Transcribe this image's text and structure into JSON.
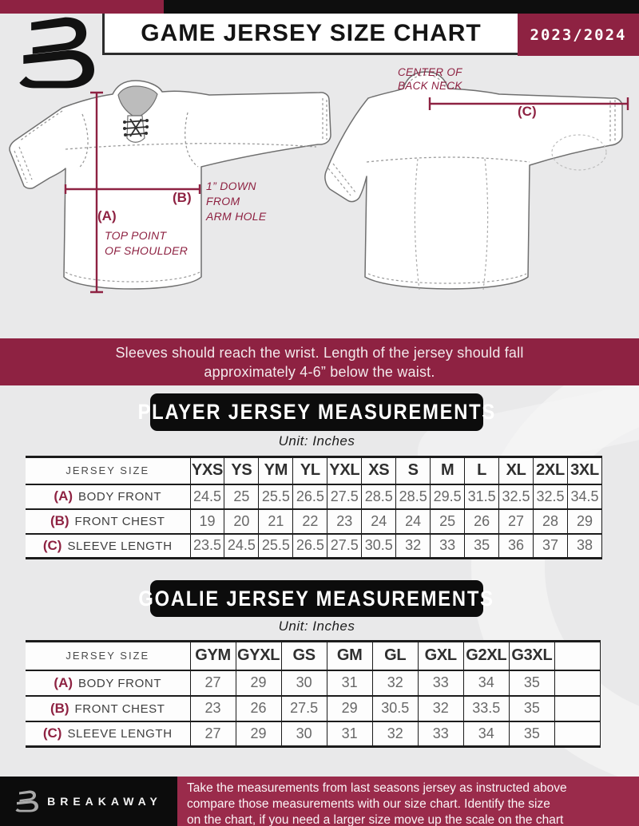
{
  "colors": {
    "brand_maroon": "#8e2242",
    "footer_maroon": "#9a2b4b",
    "black": "#0c0c0c",
    "page_bg": "#e9e9ea"
  },
  "header": {
    "title": "GAME JERSEY SIZE CHART",
    "season": "2023/2024",
    "logo": "breakaway-b-logo"
  },
  "diagram": {
    "front": {
      "label_a": "(A)",
      "label_b": "(B)",
      "note_a": [
        "TOP POINT",
        "OF SHOULDER"
      ],
      "note_b": [
        "1” DOWN",
        "FROM",
        "ARM HOLE"
      ]
    },
    "back": {
      "label_c": "(C)",
      "note_c": [
        "CENTER OF",
        "BACK NECK"
      ]
    }
  },
  "notice": {
    "line1": "Sleeves should reach the wrist. Length of the jersey should fall",
    "line2": "approximately 4-6” below the waist."
  },
  "player_table": {
    "banner": "PLAYER JERSEY MEASUREMENTS",
    "unit": "Unit: Inches",
    "corner": "JERSEY SIZE",
    "label_col_width": "206px",
    "sizes": [
      "YXS",
      "YS",
      "YM",
      "YL",
      "YXL",
      "XS",
      "S",
      "M",
      "L",
      "XL",
      "2XL",
      "3XL"
    ],
    "rows": [
      {
        "key": "(A)",
        "label": "BODY FRONT",
        "values": [
          "24.5",
          "25",
          "25.5",
          "26.5",
          "27.5",
          "28.5",
          "28.5",
          "29.5",
          "31.5",
          "32.5",
          "32.5",
          "34.5"
        ]
      },
      {
        "key": "(B)",
        "label": "FRONT CHEST",
        "values": [
          "19",
          "20",
          "21",
          "22",
          "23",
          "24",
          "24",
          "25",
          "26",
          "27",
          "28",
          "29"
        ]
      },
      {
        "key": "(C)",
        "label": "SLEEVE LENGTH",
        "values": [
          "23.5",
          "24.5",
          "25.5",
          "26.5",
          "27.5",
          "30.5",
          "32",
          "33",
          "35",
          "36",
          "37",
          "38"
        ]
      }
    ]
  },
  "goalie_table": {
    "banner": "GOALIE JERSEY MEASUREMENTS",
    "unit": "Unit: Inches",
    "corner": "JERSEY SIZE",
    "label_col_width": "206px",
    "sizes": [
      "GYM",
      "GYXL",
      "GS",
      "GM",
      "GL",
      "GXL",
      "G2XL",
      "G3XL",
      ""
    ],
    "rows": [
      {
        "key": "(A)",
        "label": "BODY FRONT",
        "values": [
          "27",
          "29",
          "30",
          "31",
          "32",
          "33",
          "34",
          "35",
          ""
        ]
      },
      {
        "key": "(B)",
        "label": "FRONT CHEST",
        "values": [
          "23",
          "26",
          "27.5",
          "29",
          "30.5",
          "32",
          "33.5",
          "35",
          ""
        ]
      },
      {
        "key": "(C)",
        "label": "SLEEVE LENGTH",
        "values": [
          "27",
          "29",
          "30",
          "31",
          "32",
          "33",
          "34",
          "35",
          ""
        ]
      }
    ]
  },
  "footer": {
    "brand": "BREAKAWAY",
    "lines": [
      "Take the measurements from last seasons jersey as instructed above",
      "compare those measurements  with our size chart. Identify the size",
      "on the chart, if you need a larger size move up the scale on the chart"
    ]
  }
}
